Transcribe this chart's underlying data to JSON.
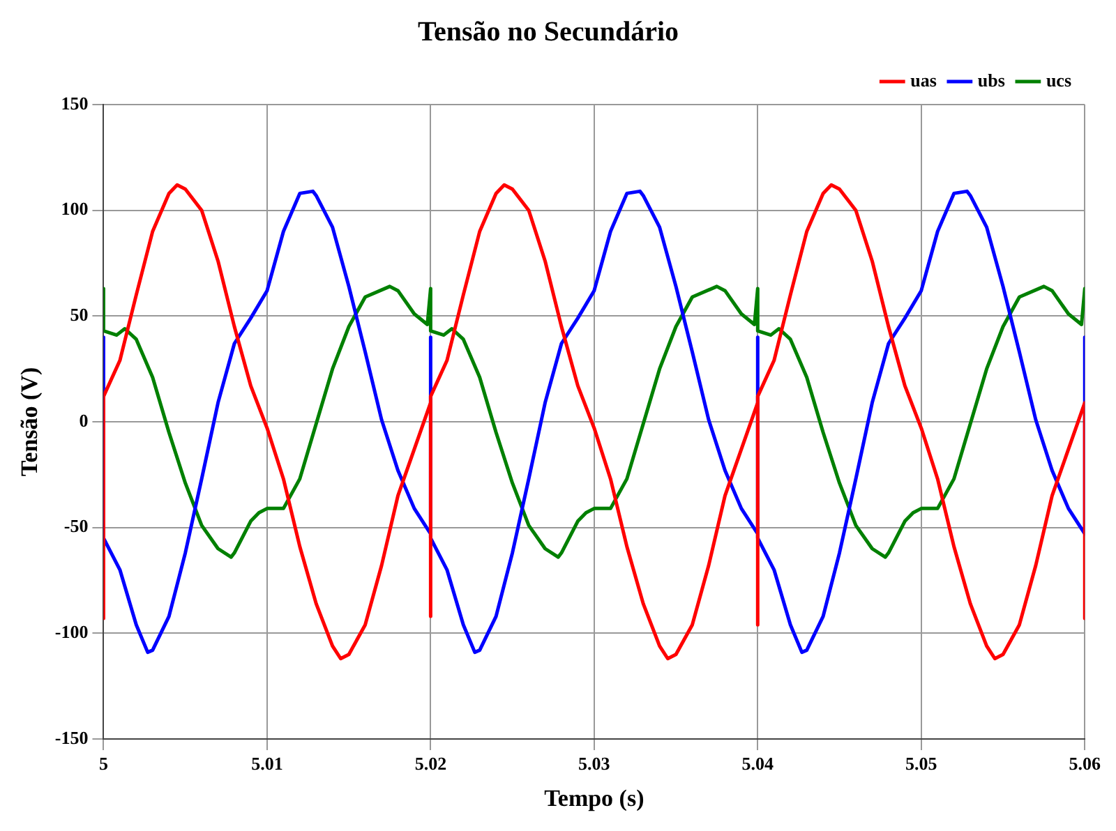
{
  "chart_data": {
    "type": "line",
    "title": "Tensão no Secundário",
    "xlabel": "Tempo (s)",
    "ylabel": "Tensão (V)",
    "xlim": [
      5,
      5.06
    ],
    "xticks": [
      5,
      5.01,
      5.02,
      5.03,
      5.04,
      5.05,
      5.06
    ],
    "ylim": [
      -150,
      150
    ],
    "yticks": [
      -150,
      -100,
      -50,
      0,
      50,
      100,
      150
    ],
    "grid": true,
    "legend": "top right",
    "marker": "none",
    "line_style": "solid",
    "series": [
      {
        "name": "uas",
        "color": "#ff0000",
        "x": [
          5,
          5,
          5.001,
          5.002,
          5.003,
          5.004,
          5.0045,
          5.005,
          5.006,
          5.007,
          5.008,
          5.009,
          5.01,
          5.011,
          5.012,
          5.013,
          5.014,
          5.0145,
          5.015,
          5.016,
          5.017,
          5.018,
          5.019,
          5.02,
          5.02,
          5.02,
          5.021,
          5.022,
          5.023,
          5.024,
          5.0245,
          5.025,
          5.026,
          5.027,
          5.028,
          5.029,
          5.03,
          5.031,
          5.032,
          5.033,
          5.034,
          5.0345,
          5.035,
          5.036,
          5.037,
          5.038,
          5.039,
          5.04,
          5.04,
          5.04,
          5.041,
          5.042,
          5.043,
          5.044,
          5.0445,
          5.045,
          5.046,
          5.047,
          5.048,
          5.049,
          5.05,
          5.051,
          5.052,
          5.053,
          5.054,
          5.0545,
          5.055,
          5.056,
          5.057,
          5.058,
          5.059,
          5.06,
          5.06
        ],
        "values": [
          -93,
          12,
          29,
          60,
          90,
          108,
          112,
          110,
          100,
          76,
          45,
          17,
          -3,
          -27,
          -59,
          -86,
          -106,
          -112,
          -110,
          -96,
          -68,
          -35,
          -13,
          9,
          -92,
          12,
          29,
          60,
          90,
          108,
          112,
          110,
          100,
          76,
          45,
          17,
          -3,
          -27,
          -59,
          -86,
          -106,
          -112,
          -110,
          -96,
          -68,
          -35,
          -13,
          9,
          -96,
          12,
          29,
          60,
          90,
          108,
          112,
          110,
          100,
          76,
          45,
          17,
          -3,
          -27,
          -59,
          -86,
          -106,
          -112,
          -110,
          -96,
          -68,
          -35,
          -13,
          9,
          -93
        ]
      },
      {
        "name": "ubs",
        "color": "#0000ff",
        "x": [
          5,
          5,
          5.001,
          5.002,
          5.0027,
          5.003,
          5.004,
          5.005,
          5.006,
          5.007,
          5.008,
          5.009,
          5.01,
          5.011,
          5.012,
          5.0128,
          5.013,
          5.014,
          5.015,
          5.016,
          5.017,
          5.018,
          5.019,
          5.02,
          5.02,
          5.02,
          5.021,
          5.022,
          5.0227,
          5.023,
          5.024,
          5.025,
          5.026,
          5.027,
          5.028,
          5.029,
          5.03,
          5.031,
          5.032,
          5.0328,
          5.033,
          5.034,
          5.035,
          5.036,
          5.037,
          5.038,
          5.039,
          5.04,
          5.04,
          5.04,
          5.041,
          5.042,
          5.0427,
          5.043,
          5.044,
          5.045,
          5.046,
          5.047,
          5.048,
          5.049,
          5.05,
          5.051,
          5.052,
          5.0528,
          5.053,
          5.054,
          5.055,
          5.056,
          5.057,
          5.058,
          5.059,
          5.06,
          5.06
        ],
        "values": [
          40,
          -55,
          -70,
          -96,
          -109,
          -108,
          -92,
          -62,
          -27,
          9,
          37,
          49,
          62,
          90,
          108,
          109,
          107,
          92,
          64,
          33,
          1,
          -23,
          -41,
          -53,
          40,
          -55,
          -70,
          -96,
          -109,
          -108,
          -92,
          -62,
          -27,
          9,
          37,
          49,
          62,
          90,
          108,
          109,
          107,
          92,
          64,
          33,
          1,
          -23,
          -41,
          -53,
          40,
          -55,
          -70,
          -96,
          -109,
          -108,
          -92,
          -62,
          -27,
          9,
          37,
          49,
          62,
          90,
          108,
          109,
          107,
          92,
          64,
          33,
          1,
          -23,
          -41,
          -53,
          40
        ]
      },
      {
        "name": "ucs",
        "color": "#008000",
        "x": [
          5,
          5,
          5.0008,
          5.0013,
          5.002,
          5.003,
          5.004,
          5.005,
          5.006,
          5.007,
          5.0078,
          5.008,
          5.009,
          5.0095,
          5.01,
          5.011,
          5.012,
          5.013,
          5.014,
          5.015,
          5.016,
          5.0175,
          5.018,
          5.019,
          5.0198,
          5.02,
          5.02,
          5.0208,
          5.0213,
          5.022,
          5.023,
          5.024,
          5.025,
          5.026,
          5.027,
          5.0278,
          5.028,
          5.029,
          5.0295,
          5.03,
          5.031,
          5.032,
          5.033,
          5.034,
          5.035,
          5.036,
          5.0375,
          5.038,
          5.039,
          5.0398,
          5.04,
          5.04,
          5.0408,
          5.0413,
          5.042,
          5.043,
          5.044,
          5.045,
          5.046,
          5.047,
          5.0478,
          5.048,
          5.049,
          5.0495,
          5.05,
          5.051,
          5.052,
          5.053,
          5.054,
          5.055,
          5.056,
          5.0575,
          5.058,
          5.059,
          5.0598,
          5.06
        ],
        "values": [
          63,
          43,
          41,
          44,
          39,
          21,
          -5,
          -29,
          -49,
          -60,
          -64,
          -62,
          -47,
          -43,
          -41,
          -41,
          -27,
          -1,
          25,
          45,
          59,
          64,
          62,
          51,
          46,
          63,
          43,
          41,
          44,
          39,
          21,
          -5,
          -29,
          -49,
          -60,
          -64,
          -62,
          -47,
          -43,
          -41,
          -41,
          -27,
          -1,
          25,
          45,
          59,
          64,
          62,
          51,
          46,
          63,
          43,
          41,
          44,
          39,
          21,
          -5,
          -29,
          -49,
          -60,
          -64,
          -62,
          -47,
          -43,
          -41,
          -41,
          -27,
          -1,
          25,
          45,
          59,
          64,
          62,
          51,
          46,
          63
        ]
      }
    ]
  }
}
